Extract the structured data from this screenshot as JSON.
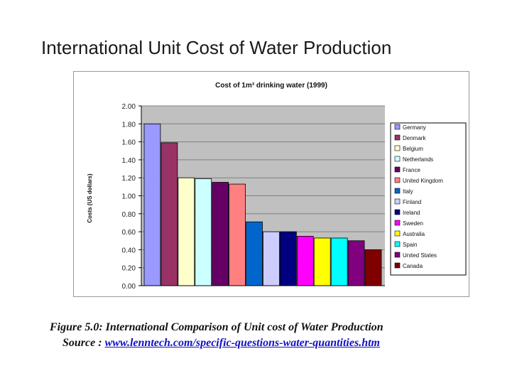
{
  "slide": {
    "title": "International Unit Cost of Water Production"
  },
  "caption": {
    "figure": "Figure 5.0: International Comparison of Unit cost of Water Production",
    "source_label": "Source :",
    "source_link": "www.lenntech.com/specific-questions-water-quantities.htm"
  },
  "chart_data": {
    "type": "bar",
    "title": "Cost of 1m³ drinking water (1999)",
    "ylabel": "Costs (US dollars)",
    "xlabel": "",
    "ylim": [
      0,
      2.0
    ],
    "yticks": [
      "2.00",
      "1.80",
      "1.60",
      "1.40",
      "1.20",
      "1.00",
      "0.80",
      "0.60",
      "0.40",
      "0.20",
      "0.00"
    ],
    "grid": true,
    "legend_position": "right",
    "categories": [
      "Germany",
      "Denmark",
      "Belgium",
      "Netherlands",
      "France",
      "United Kingdom",
      "Italy",
      "Finland",
      "Ireland",
      "Sweden",
      "Australia",
      "Spain",
      "United States",
      "Canada"
    ],
    "values": [
      1.8,
      1.59,
      1.2,
      1.19,
      1.15,
      1.13,
      0.71,
      0.6,
      0.6,
      0.55,
      0.53,
      0.53,
      0.5,
      0.4
    ],
    "colors": [
      "#9999ff",
      "#993366",
      "#ffffcc",
      "#ccffff",
      "#660066",
      "#ff8080",
      "#0066cc",
      "#ccccff",
      "#000080",
      "#ff00ff",
      "#ffff00",
      "#00ffff",
      "#800080",
      "#800000"
    ],
    "plot_background": "#c0c0c0"
  }
}
